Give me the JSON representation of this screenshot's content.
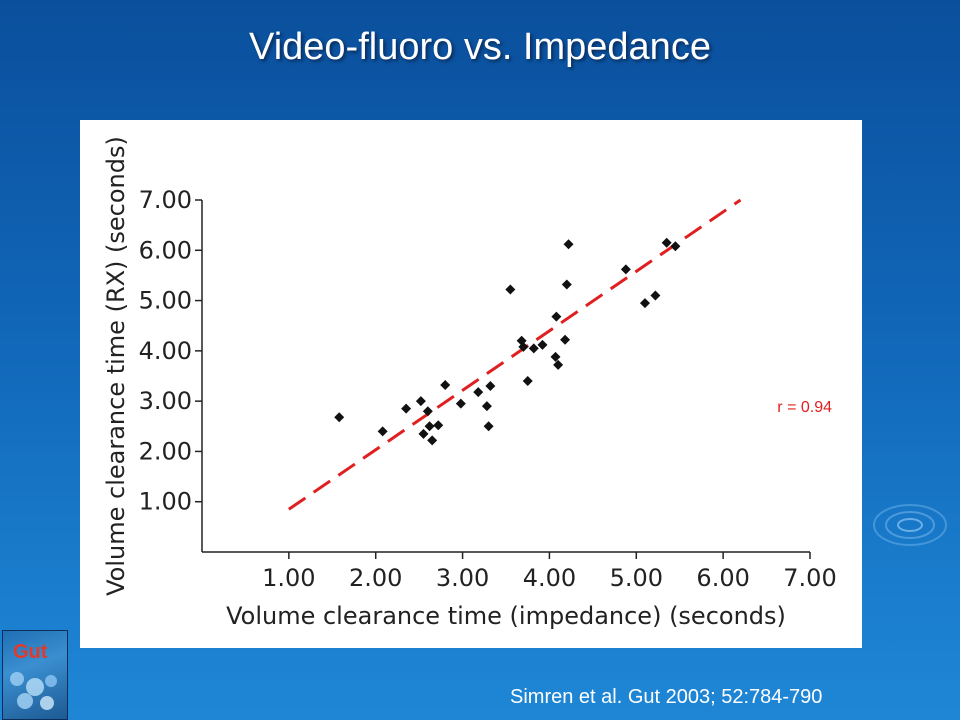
{
  "slide": {
    "title": "Video-fluoro vs. Impedance",
    "citation": "Simren et al. Gut 2003; 52:784-790",
    "journal_logo_text": "Gut",
    "colors": {
      "background": "#1166b8",
      "title": "#ffffff",
      "fit_line": "#e02020",
      "points": "#111111"
    }
  },
  "chart_data": {
    "type": "scatter",
    "title": "",
    "xlabel": "Volume clearance time (impedance) (seconds)",
    "ylabel": "Volume clearance time (RX) (seconds)",
    "xlim": [
      0.0,
      7.0
    ],
    "ylim": [
      0.0,
      7.0
    ],
    "xticks": [
      "1.00",
      "2.00",
      "3.00",
      "4.00",
      "5.00",
      "6.00",
      "7.00"
    ],
    "yticks": [
      "1.00",
      "2.00",
      "3.00",
      "4.00",
      "5.00",
      "6.00",
      "7.00"
    ],
    "grid": false,
    "annotation": "r = 0.94",
    "fit_line": {
      "x": [
        1.0,
        6.2
      ],
      "y": [
        0.85,
        7.0
      ],
      "style": "dashed",
      "color": "#e02020"
    },
    "points": [
      [
        1.58,
        2.68
      ],
      [
        2.08,
        2.4
      ],
      [
        2.35,
        2.85
      ],
      [
        2.52,
        3.0
      ],
      [
        2.55,
        2.35
      ],
      [
        2.6,
        2.8
      ],
      [
        2.62,
        2.5
      ],
      [
        2.65,
        2.22
      ],
      [
        2.72,
        2.52
      ],
      [
        2.8,
        3.32
      ],
      [
        2.98,
        2.95
      ],
      [
        3.18,
        3.18
      ],
      [
        3.28,
        2.9
      ],
      [
        3.3,
        2.5
      ],
      [
        3.32,
        3.3
      ],
      [
        3.55,
        5.22
      ],
      [
        3.68,
        4.2
      ],
      [
        3.7,
        4.08
      ],
      [
        3.75,
        3.4
      ],
      [
        3.82,
        4.05
      ],
      [
        3.92,
        4.12
      ],
      [
        4.07,
        3.88
      ],
      [
        4.08,
        4.68
      ],
      [
        4.1,
        3.72
      ],
      [
        4.18,
        4.22
      ],
      [
        4.2,
        5.32
      ],
      [
        4.22,
        6.12
      ],
      [
        4.88,
        5.62
      ],
      [
        5.1,
        4.95
      ],
      [
        5.22,
        5.1
      ],
      [
        5.35,
        6.15
      ],
      [
        5.45,
        6.08
      ]
    ]
  }
}
